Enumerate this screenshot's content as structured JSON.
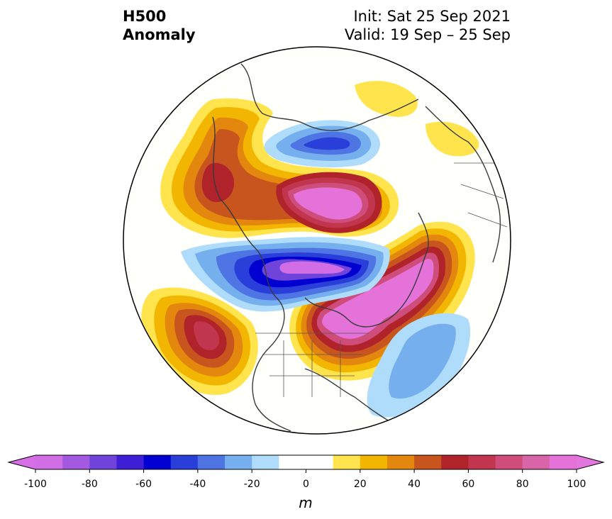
{
  "title": {
    "left_line1": "H500",
    "left_line2": "Anomaly",
    "right_line1": "Init: Sat 25 Sep 2021",
    "right_line2": "Valid: 19 Sep – 25 Sep"
  },
  "colorbar": {
    "unit": "m",
    "ticks": [
      "-100",
      "-80",
      "-60",
      "-40",
      "-20",
      "0",
      "20",
      "40",
      "60",
      "80",
      "100"
    ],
    "min": -100,
    "max": 100,
    "step": 10,
    "extend": "both",
    "colors": [
      "#d16ee6",
      "#a35ae0",
      "#7043db",
      "#3f1fd6",
      "#0000d1",
      "#2a3fd9",
      "#4f74e3",
      "#76afee",
      "#aedcfa",
      "#ffffff",
      "#ffffff",
      "#ffe44d",
      "#f2b600",
      "#e3870f",
      "#c8551d",
      "#b0232a",
      "#c1354e",
      "#cf4d7a",
      "#d865a8",
      "#e472d8"
    ],
    "under_color": "#d66fe6",
    "over_color": "#e476df"
  },
  "map": {
    "projection": "north-polar-stereographic",
    "field": "500 hPa geopotential height anomaly",
    "colors": {
      "ocean": "#fffffc",
      "coast": "#3a3a3a",
      "border": "#555555",
      "outline": "#000000"
    }
  }
}
